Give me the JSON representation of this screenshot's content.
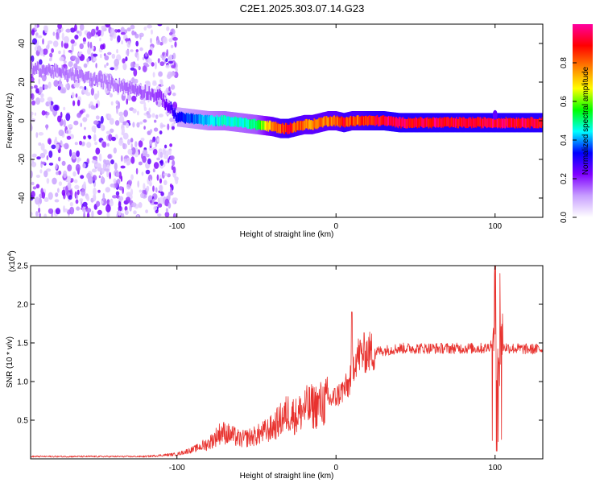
{
  "title": "C2E1.2025.303.07.14.G23",
  "chart_data": [
    {
      "type": "heatmap",
      "name": "spectrogram",
      "xlabel": "Height of straight line (km)",
      "ylabel": "Frequency (Hz)",
      "xlim": [
        -192,
        130
      ],
      "ylim": [
        -50,
        50
      ],
      "xticks": [
        -100,
        0,
        100
      ],
      "xtick_labels": [
        "-100",
        "0",
        "100"
      ],
      "yticks": [
        -40,
        -20,
        0,
        20,
        40
      ],
      "ytick_labels": [
        "-40",
        "-20",
        "0",
        "20",
        "40"
      ],
      "ridge": {
        "x": [
          -192,
          -180,
          -160,
          -140,
          -120,
          -110,
          -100,
          -90,
          -80,
          -70,
          -60,
          -50,
          -40,
          -35,
          -30,
          -25,
          -20,
          -15,
          -10,
          -5,
          0,
          5,
          10,
          15,
          20,
          30,
          40,
          60,
          80,
          100,
          110,
          120,
          130
        ],
        "freq": [
          27,
          26,
          23,
          19,
          15,
          12,
          2,
          1,
          0,
          0,
          -1,
          -2,
          -3,
          -4,
          -4,
          -3,
          -2,
          -2,
          -1,
          0,
          0,
          -1,
          0,
          0,
          0,
          0,
          -1,
          -1,
          -1,
          -1,
          -1,
          -1,
          -1
        ],
        "amplitude": [
          0.15,
          0.15,
          0.15,
          0.15,
          0.17,
          0.2,
          0.35,
          0.4,
          0.45,
          0.5,
          0.5,
          0.55,
          0.85,
          0.9,
          0.95,
          0.9,
          0.85,
          0.85,
          0.85,
          0.85,
          0.85,
          0.95,
          0.9,
          0.9,
          0.95,
          1.0,
          1.0,
          1.0,
          1.0,
          1.0,
          1.0,
          1.0,
          1.0
        ]
      },
      "noise_region_x": [
        -192,
        -100
      ],
      "colorbar": {
        "label": "Normalized spectral amplitude",
        "range": [
          0,
          1
        ],
        "ticks": [
          0,
          0.2,
          0.4,
          0.6,
          0.8
        ],
        "tick_labels": [
          "0.0",
          "0.2",
          "0.4",
          "0.6",
          "0.8"
        ],
        "colors": [
          "#ffffff",
          "#c8a0ff",
          "#8000ff",
          "#0000ff",
          "#00ffff",
          "#00ff00",
          "#ffff00",
          "#ff8000",
          "#ff0000",
          "#ff00a0"
        ]
      }
    },
    {
      "type": "line",
      "name": "snr",
      "xlabel": "Height of straight line (km)",
      "ylabel": "SNR (10 * v/v)",
      "scale_label": "(x10",
      "scale_exp": "4",
      "scale_close": ")",
      "xlim": [
        -192,
        130
      ],
      "ylim": [
        0,
        25000
      ],
      "xticks": [
        -100,
        0,
        100
      ],
      "xtick_labels": [
        "-100",
        "0",
        "100"
      ],
      "yticks": [
        5000,
        10000,
        15000,
        20000,
        25000
      ],
      "ytick_labels": [
        "0.5",
        "1.0",
        "1.5",
        "2.0",
        "2.5"
      ],
      "color": "#e8322e",
      "envelope": {
        "x": [
          -192,
          -120,
          -100,
          -90,
          -80,
          -72,
          -65,
          -60,
          -50,
          -40,
          -35,
          -30,
          -25,
          -20,
          -10,
          0,
          5,
          8,
          10,
          12,
          15,
          20,
          30,
          40,
          60,
          80,
          95,
          98,
          100,
          103,
          105,
          110,
          120,
          130
        ],
        "y": [
          300,
          300,
          600,
          1200,
          2000,
          3500,
          3000,
          2500,
          3000,
          4000,
          5000,
          6000,
          5500,
          6500,
          7000,
          8000,
          9000,
          9500,
          11500,
          13000,
          13500,
          13800,
          14000,
          14300,
          14300,
          14300,
          14300,
          15000,
          18000,
          12000,
          14500,
          14300,
          14200,
          14200
        ]
      },
      "spikes": [
        {
          "x": 10,
          "y": 19000
        },
        {
          "x": 100,
          "y": 25500
        },
        {
          "x": 101,
          "y": 1000
        },
        {
          "x": 103,
          "y": 24000
        },
        {
          "x": 104,
          "y": 2500
        }
      ]
    }
  ]
}
